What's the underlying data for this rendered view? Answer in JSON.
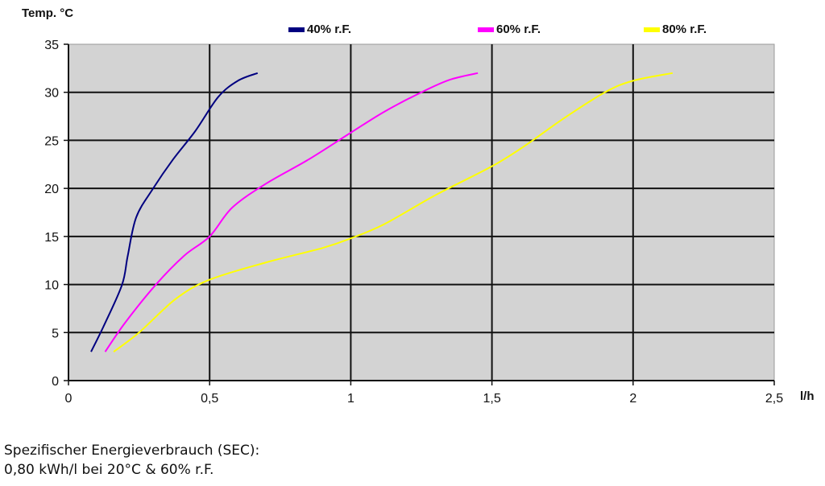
{
  "chart_data": {
    "type": "line",
    "title": "",
    "ylabel": "Temp. °C",
    "xlabel": "l/h",
    "xlim": [
      0,
      2.5
    ],
    "ylim": [
      0,
      35
    ],
    "x_ticks": [
      "0",
      "0,5",
      "1",
      "1,5",
      "2",
      "2,5"
    ],
    "y_ticks": [
      "0",
      "5",
      "10",
      "15",
      "20",
      "25",
      "30",
      "35"
    ],
    "grid": true,
    "legend_position": "top",
    "plot_background": "#d3d3d3",
    "series": [
      {
        "name": "40% r.F.",
        "color": "#000080",
        "points": [
          [
            0.08,
            3
          ],
          [
            0.13,
            6
          ],
          [
            0.19,
            10
          ],
          [
            0.21,
            13
          ],
          [
            0.24,
            17
          ],
          [
            0.3,
            20
          ],
          [
            0.37,
            23
          ],
          [
            0.45,
            26
          ],
          [
            0.53,
            29.5
          ],
          [
            0.6,
            31.2
          ],
          [
            0.67,
            32
          ]
        ]
      },
      {
        "name": "60% r.F.",
        "color": "#ff00ff",
        "points": [
          [
            0.13,
            3
          ],
          [
            0.2,
            6
          ],
          [
            0.31,
            10
          ],
          [
            0.41,
            13
          ],
          [
            0.5,
            15
          ],
          [
            0.58,
            18
          ],
          [
            0.7,
            20.5
          ],
          [
            0.85,
            23
          ],
          [
            1.0,
            25.8
          ],
          [
            1.12,
            28
          ],
          [
            1.25,
            30
          ],
          [
            1.35,
            31.3
          ],
          [
            1.45,
            32
          ]
        ]
      },
      {
        "name": "80% r.F.",
        "color": "#ffff00",
        "points": [
          [
            0.16,
            3
          ],
          [
            0.25,
            5
          ],
          [
            0.38,
            8.5
          ],
          [
            0.5,
            10.5
          ],
          [
            0.7,
            12.3
          ],
          [
            0.9,
            13.8
          ],
          [
            1.0,
            14.8
          ],
          [
            1.12,
            16.3
          ],
          [
            1.3,
            19.3
          ],
          [
            1.5,
            22.3
          ],
          [
            1.62,
            24.5
          ],
          [
            1.75,
            27.2
          ],
          [
            1.9,
            30
          ],
          [
            2.0,
            31.2
          ],
          [
            2.14,
            32
          ]
        ]
      }
    ]
  },
  "legend": [
    {
      "label": "40% r.F.",
      "color": "#000080"
    },
    {
      "label": "60% r.F.",
      "color": "#ff00ff"
    },
    {
      "label": "80% r.F.",
      "color": "#ffff00"
    }
  ],
  "axis": {
    "y_title": "Temp. °C",
    "x_unit": "l/h"
  },
  "caption": {
    "line1": "Spezifischer Energieverbrauch (SEC):",
    "line2": "0,80 kWh/l bei 20°C & 60% r.F."
  }
}
